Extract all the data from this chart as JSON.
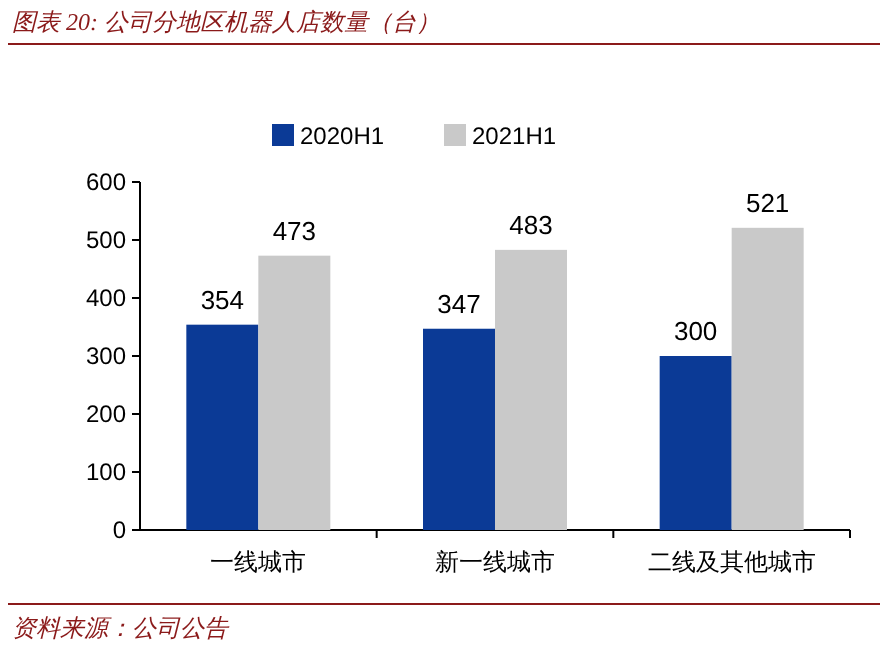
{
  "chart_data": {
    "type": "bar",
    "title": "图表 20: 公司分地区机器人店数量（台）",
    "categories": [
      "一线城市",
      "新一线城市",
      "二线及其他城市"
    ],
    "series": [
      {
        "name": "2020H1",
        "color": "#0b3a96",
        "values": [
          354,
          347,
          300
        ]
      },
      {
        "name": "2021H1",
        "color": "#c9c9c9",
        "values": [
          473,
          483,
          521
        ]
      }
    ],
    "ylim": [
      0,
      600
    ],
    "yticks": [
      0,
      100,
      200,
      300,
      400,
      500,
      600
    ],
    "data_labels": true,
    "legend": "top",
    "grid": false,
    "annotations": [
      "资料来源：公司公告"
    ]
  }
}
